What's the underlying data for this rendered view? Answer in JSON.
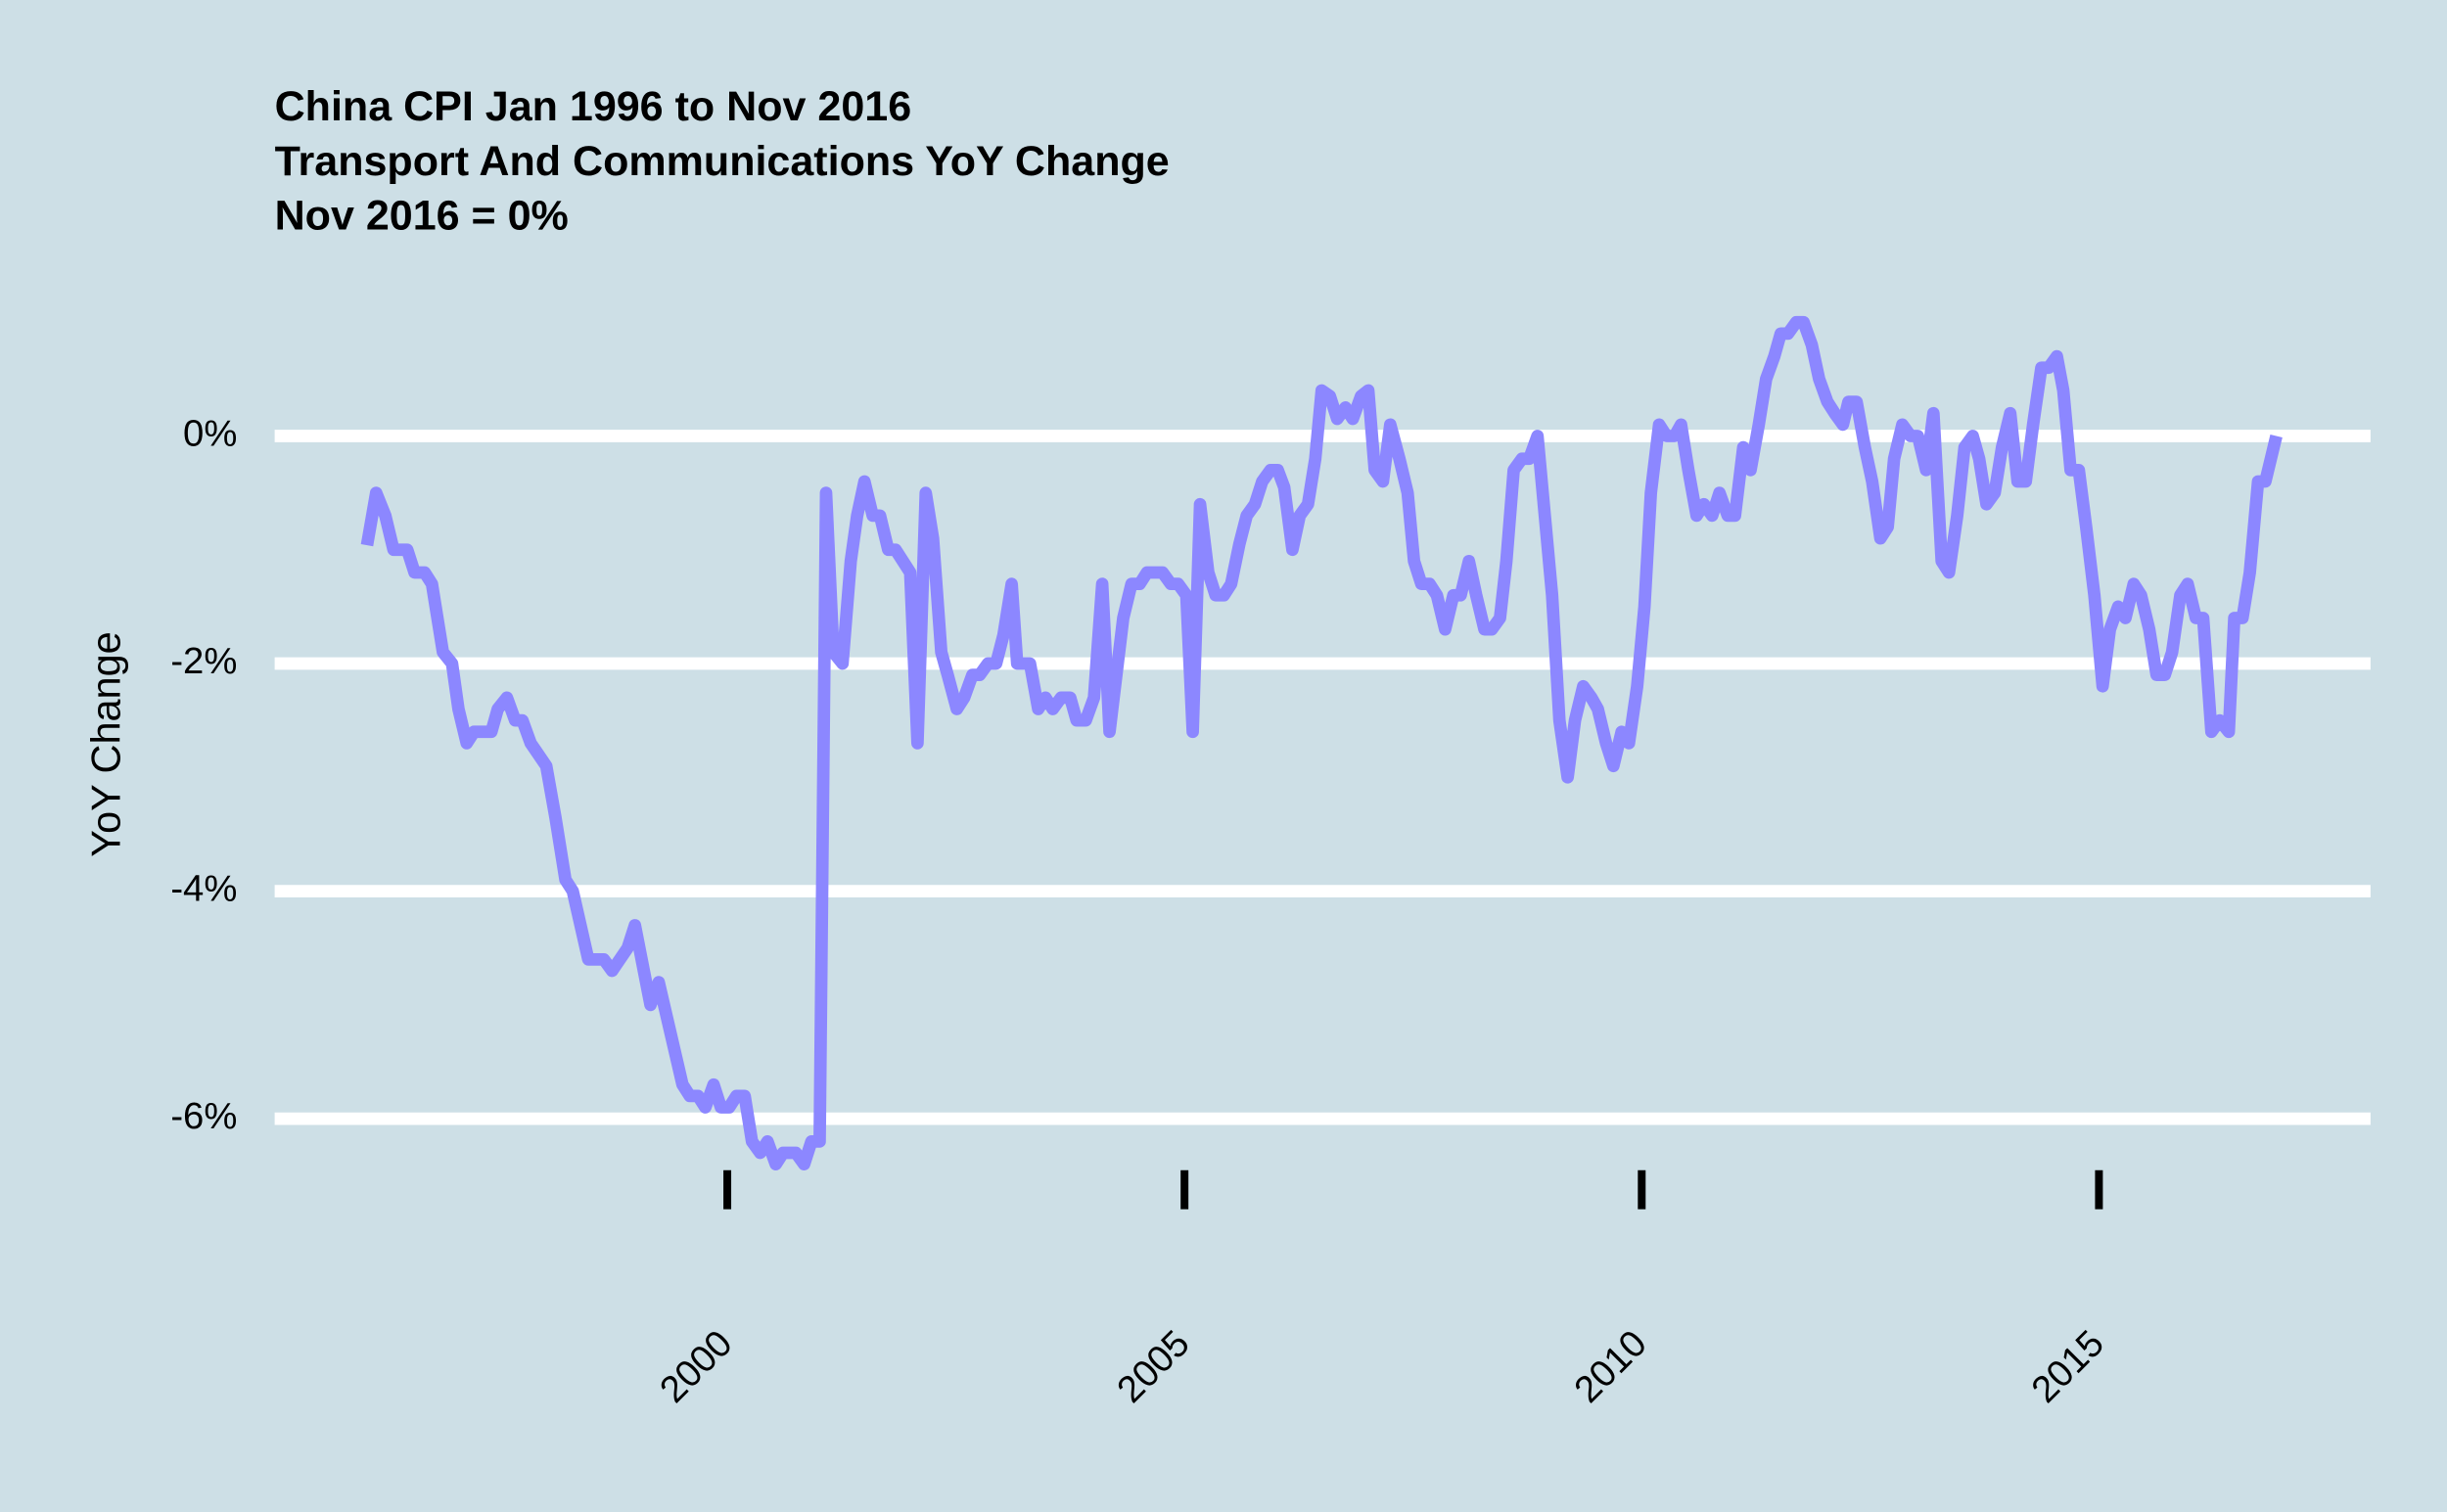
{
  "chart_data": {
    "type": "line",
    "title": [
      "China CPI Jan 1996 to Nov 2016",
      "Transport And Communications YoY Change",
      "Nov 2016 = 0%"
    ],
    "y_label": "YoY Change",
    "xlim": [
      1995.05,
      2017.97
    ],
    "xticks": [
      2000,
      2005,
      2010,
      2015
    ],
    "ylim": [
      -6.7,
      1.5
    ],
    "yticks": [
      {
        "value": 0,
        "label": "0%"
      },
      {
        "value": -2,
        "label": "-2%"
      },
      {
        "value": -4,
        "label": "-4%"
      },
      {
        "value": -6,
        "label": "-6%"
      }
    ],
    "grid": true,
    "series": [
      {
        "color": "#8c87ff",
        "x": [
          1996.06,
          1996.16,
          1996.26,
          1996.35,
          1996.5,
          1996.58,
          1996.69,
          1996.77,
          1996.89,
          1996.99,
          1997.06,
          1997.15,
          1997.23,
          1997.42,
          1997.49,
          1997.59,
          1997.68,
          1997.76,
          1997.85,
          1998.02,
          1998.12,
          1998.23,
          1998.31,
          1998.48,
          1998.65,
          1998.74,
          1998.91,
          1998.99,
          1999.16,
          1999.25,
          1999.51,
          1999.59,
          1999.68,
          1999.76,
          1999.85,
          1999.93,
          2000.02,
          2000.1,
          2000.19,
          2000.27,
          2000.36,
          2000.44,
          2000.53,
          2000.61,
          2000.75,
          2000.84,
          2000.92,
          2001.01,
          2001.08,
          2001.16,
          2001.26,
          2001.35,
          2001.42,
          2001.5,
          2001.59,
          2001.67,
          2001.76,
          2001.84,
          2002.0,
          2002.08,
          2002.17,
          2002.25,
          2002.34,
          2002.41,
          2002.51,
          2002.59,
          2002.68,
          2002.76,
          2002.85,
          2002.94,
          2003.02,
          2003.11,
          2003.17,
          2003.31,
          2003.4,
          2003.48,
          2003.56,
          2003.65,
          2003.75,
          2003.82,
          2003.92,
          2004.01,
          2004.1,
          2004.18,
          2004.27,
          2004.33,
          2004.42,
          2004.51,
          2004.59,
          2004.76,
          2004.85,
          2004.93,
          2005.02,
          2005.09,
          2005.17,
          2005.26,
          2005.34,
          2005.43,
          2005.51,
          2005.6,
          2005.68,
          2005.77,
          2005.85,
          2005.94,
          2006.02,
          2006.09,
          2006.18,
          2006.26,
          2006.35,
          2006.43,
          2006.5,
          2006.59,
          2006.67,
          2006.76,
          2006.84,
          2006.93,
          2007.01,
          2007.08,
          2007.17,
          2007.25,
          2007.35,
          2007.44,
          2007.51,
          2007.59,
          2007.68,
          2007.76,
          2007.85,
          2007.94,
          2008.02,
          2008.11,
          2008.19,
          2008.28,
          2008.36,
          2008.45,
          2008.52,
          2008.6,
          2008.69,
          2008.77,
          2008.86,
          2009.02,
          2009.1,
          2009.19,
          2009.27,
          2009.36,
          2009.45,
          2009.52,
          2009.61,
          2009.69,
          2009.78,
          2009.86,
          2009.95,
          2010.03,
          2010.1,
          2010.19,
          2010.27,
          2010.36,
          2010.43,
          2010.51,
          2010.6,
          2010.68,
          2010.77,
          2010.85,
          2010.94,
          2011.02,
          2011.11,
          2011.19,
          2011.28,
          2011.36,
          2011.45,
          2011.52,
          2011.6,
          2011.69,
          2011.77,
          2011.86,
          2011.94,
          2012.03,
          2012.11,
          2012.2,
          2012.26,
          2012.35,
          2012.44,
          2012.52,
          2012.61,
          2012.69,
          2012.76,
          2012.85,
          2012.94,
          2013.02,
          2013.11,
          2013.19,
          2013.28,
          2013.36,
          2013.45,
          2013.53,
          2013.62,
          2013.69,
          2013.77,
          2013.86,
          2013.94,
          2014.03,
          2014.11,
          2014.2,
          2014.28,
          2014.37,
          2014.45,
          2014.54,
          2014.61,
          2014.69,
          2014.78,
          2014.86,
          2014.95,
          2015.04,
          2015.12,
          2015.21,
          2015.29,
          2015.38,
          2015.46,
          2015.55,
          2015.63,
          2015.72,
          2015.8,
          2015.89,
          2015.97,
          2016.06,
          2016.14,
          2016.23,
          2016.32,
          2016.42,
          2016.48,
          2016.57,
          2016.65,
          2016.74,
          2016.82,
          2016.94
        ],
        "values": [
          -0.96,
          -0.5,
          -0.7,
          -1.0,
          -1.0,
          -1.2,
          -1.2,
          -1.3,
          -1.9,
          -2.0,
          -2.4,
          -2.7,
          -2.6,
          -2.6,
          -2.4,
          -2.3,
          -2.5,
          -2.5,
          -2.7,
          -2.9,
          -3.35,
          -3.9,
          -4.0,
          -4.6,
          -4.6,
          -4.7,
          -4.5,
          -4.3,
          -5.0,
          -4.8,
          -5.7,
          -5.8,
          -5.8,
          -5.9,
          -5.7,
          -5.9,
          -5.9,
          -5.8,
          -5.8,
          -6.2,
          -6.3,
          -6.2,
          -6.4,
          -6.3,
          -6.3,
          -6.4,
          -6.2,
          -6.2,
          -0.5,
          -1.9,
          -2.0,
          -1.1,
          -0.7,
          -0.4,
          -0.7,
          -0.7,
          -1.0,
          -1.0,
          -1.2,
          -2.7,
          -0.5,
          -0.9,
          -1.9,
          -2.1,
          -2.4,
          -2.3,
          -2.1,
          -2.1,
          -2.0,
          -2.0,
          -1.75,
          -1.3,
          -2.0,
          -2.0,
          -2.4,
          -2.3,
          -2.4,
          -2.3,
          -2.3,
          -2.5,
          -2.5,
          -2.3,
          -1.3,
          -2.6,
          -2.0,
          -1.6,
          -1.3,
          -1.3,
          -1.2,
          -1.2,
          -1.3,
          -1.3,
          -1.4,
          -2.6,
          -0.6,
          -1.2,
          -1.4,
          -1.4,
          -1.3,
          -0.95,
          -0.7,
          -0.6,
          -0.4,
          -0.3,
          -0.3,
          -0.45,
          -1.0,
          -0.7,
          -0.6,
          -0.2,
          0.4,
          0.35,
          0.15,
          0.25,
          0.15,
          0.35,
          0.4,
          -0.3,
          -0.4,
          0.1,
          -0.2,
          -0.5,
          -1.1,
          -1.3,
          -1.3,
          -1.4,
          -1.7,
          -1.4,
          -1.4,
          -1.1,
          -1.4,
          -1.7,
          -1.7,
          -1.6,
          -1.1,
          -0.3,
          -0.2,
          -0.2,
          0.0,
          -1.4,
          -2.5,
          -3.0,
          -2.5,
          -2.2,
          -2.3,
          -2.4,
          -2.7,
          -2.9,
          -2.6,
          -2.7,
          -2.2,
          -1.5,
          -0.5,
          0.1,
          0.0,
          0.0,
          0.1,
          -0.3,
          -0.7,
          -0.6,
          -0.7,
          -0.5,
          -0.7,
          -0.7,
          -0.1,
          -0.3,
          0.1,
          0.5,
          0.7,
          0.9,
          0.9,
          1.0,
          1.0,
          0.8,
          0.5,
          0.3,
          0.2,
          0.1,
          0.3,
          0.3,
          -0.1,
          -0.4,
          -0.9,
          -0.8,
          -0.2,
          0.1,
          0.0,
          0.0,
          -0.3,
          0.2,
          -1.1,
          -1.2,
          -0.7,
          -0.1,
          0.0,
          -0.2,
          -0.6,
          -0.5,
          -0.1,
          0.2,
          -0.4,
          -0.4,
          0.1,
          0.6,
          0.6,
          0.7,
          0.4,
          -0.3,
          -0.3,
          -0.8,
          -1.4,
          -2.2,
          -1.7,
          -1.5,
          -1.6,
          -1.3,
          -1.4,
          -1.7,
          -2.1,
          -2.1,
          -1.9,
          -1.4,
          -1.3,
          -1.6,
          -1.6,
          -2.6,
          -2.5,
          -2.6,
          -1.6,
          -1.6,
          -1.2,
          -0.4,
          -0.4,
          0.0
        ]
      }
    ]
  }
}
